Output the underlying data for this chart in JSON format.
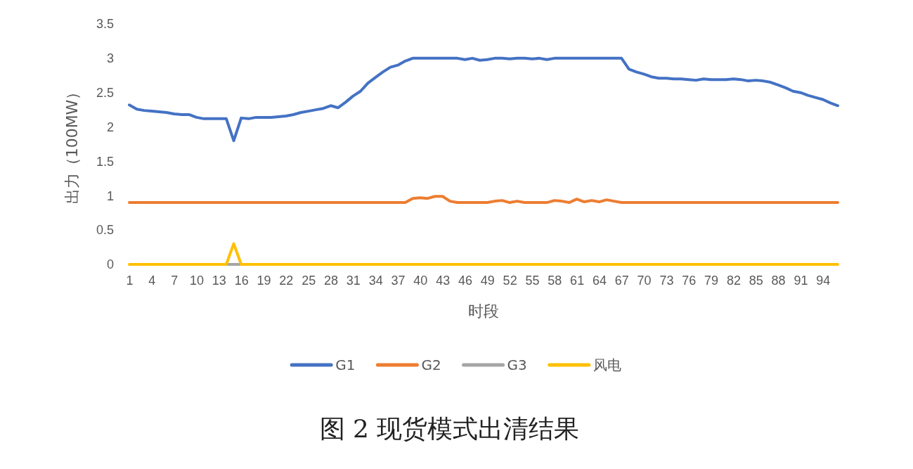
{
  "chart_data": {
    "type": "line",
    "title": "图 2  现货模式出清结果",
    "xlabel": "时段",
    "ylabel": "出力（100MW）",
    "categories": [
      "1",
      null,
      null,
      "4",
      null,
      null,
      "7",
      null,
      null,
      "10",
      null,
      null,
      "13",
      null,
      null,
      "16",
      null,
      null,
      "19",
      null,
      null,
      "22",
      null,
      null,
      "25",
      null,
      null,
      "28",
      null,
      null,
      "31",
      null,
      null,
      "34",
      null,
      null,
      "37",
      null,
      null,
      "40",
      null,
      null,
      "43",
      null,
      null,
      "46",
      null,
      null,
      "49",
      null,
      null,
      "52",
      null,
      null,
      "55",
      null,
      null,
      "58",
      null,
      null,
      "61",
      null,
      null,
      "64",
      null,
      null,
      "67",
      null,
      null,
      "70",
      null,
      null,
      "73",
      null,
      null,
      "76",
      null,
      null,
      "79",
      null,
      null,
      "82",
      null,
      null,
      "85",
      null,
      null,
      "88",
      null,
      null,
      "91",
      null,
      null,
      "94",
      null,
      null
    ],
    "ylim": [
      0,
      3.5
    ],
    "yticks": [
      0,
      0.5,
      1,
      1.5,
      2,
      2.5,
      3,
      3.5
    ],
    "grid": false,
    "legend": "bottom",
    "marker": "none",
    "line_style": "solid",
    "series": [
      {
        "name": "G1",
        "color": "#4472c4",
        "values": [
          2.32,
          2.26,
          2.24,
          2.23,
          2.22,
          2.21,
          2.19,
          2.18,
          2.18,
          2.14,
          2.12,
          2.12,
          2.12,
          2.12,
          1.8,
          2.13,
          2.12,
          2.14,
          2.14,
          2.14,
          2.15,
          2.16,
          2.18,
          2.21,
          2.23,
          2.25,
          2.27,
          2.31,
          2.28,
          2.36,
          2.45,
          2.52,
          2.64,
          2.72,
          2.8,
          2.87,
          2.9,
          2.96,
          3,
          3,
          3,
          3,
          3,
          3,
          3,
          2.98,
          3,
          2.97,
          2.98,
          3,
          3,
          2.99,
          3,
          3,
          2.99,
          3,
          2.98,
          3,
          3,
          3,
          3,
          3,
          3,
          3,
          3,
          3,
          3,
          2.84,
          2.8,
          2.77,
          2.73,
          2.71,
          2.71,
          2.7,
          2.7,
          2.69,
          2.68,
          2.7,
          2.69,
          2.69,
          2.69,
          2.7,
          2.69,
          2.67,
          2.68,
          2.67,
          2.65,
          2.61,
          2.57,
          2.52,
          2.5,
          2.46,
          2.43,
          2.4,
          2.35,
          2.31
        ]
      },
      {
        "name": "G2",
        "color": "#ed7d31",
        "values": [
          0.9,
          0.9,
          0.9,
          0.9,
          0.9,
          0.9,
          0.9,
          0.9,
          0.9,
          0.9,
          0.9,
          0.9,
          0.9,
          0.9,
          0.9,
          0.9,
          0.9,
          0.9,
          0.9,
          0.9,
          0.9,
          0.9,
          0.9,
          0.9,
          0.9,
          0.9,
          0.9,
          0.9,
          0.9,
          0.9,
          0.9,
          0.9,
          0.9,
          0.9,
          0.9,
          0.9,
          0.9,
          0.9,
          0.96,
          0.97,
          0.96,
          0.99,
          0.99,
          0.92,
          0.9,
          0.9,
          0.9,
          0.9,
          0.9,
          0.92,
          0.93,
          0.9,
          0.92,
          0.9,
          0.9,
          0.9,
          0.9,
          0.93,
          0.92,
          0.9,
          0.95,
          0.91,
          0.93,
          0.91,
          0.94,
          0.92,
          0.9,
          0.9,
          0.9,
          0.9,
          0.9,
          0.9,
          0.9,
          0.9,
          0.9,
          0.9,
          0.9,
          0.9,
          0.9,
          0.9,
          0.9,
          0.9,
          0.9,
          0.9,
          0.9,
          0.9,
          0.9,
          0.9,
          0.9,
          0.9,
          0.9,
          0.9,
          0.9,
          0.9,
          0.9,
          0.9
        ]
      },
      {
        "name": "G3",
        "color": "#a5a5a5",
        "values": [
          null,
          null,
          null,
          null,
          null,
          null,
          null,
          null,
          null,
          null,
          null,
          null,
          null,
          0,
          0,
          0,
          null,
          null,
          null,
          null,
          null,
          null,
          null,
          null,
          null,
          null,
          null,
          null,
          null,
          null,
          null,
          null,
          null,
          null,
          null,
          null,
          null,
          null,
          null,
          null,
          null,
          null,
          null,
          null,
          null,
          null,
          null,
          null,
          null,
          null,
          null,
          null,
          null,
          null,
          null,
          null,
          null,
          null,
          null,
          null,
          null,
          null,
          null,
          null,
          null,
          null,
          null,
          null,
          null,
          null,
          null,
          null,
          null,
          null,
          null,
          null,
          null,
          null,
          null,
          null,
          null,
          null,
          null,
          null,
          null,
          null,
          null,
          null,
          null,
          null,
          null,
          null,
          null,
          null,
          null,
          null
        ]
      },
      {
        "name": "风电",
        "color": "#ffc000",
        "values": [
          0,
          0,
          0,
          0,
          0,
          0,
          0,
          0,
          0,
          0,
          0,
          0,
          0,
          0,
          0.3,
          0,
          0,
          0,
          0,
          0,
          0,
          0,
          0,
          0,
          0,
          0,
          0,
          0,
          0,
          0,
          0,
          0,
          0,
          0,
          0,
          0,
          0,
          0,
          0,
          0,
          0,
          0,
          0,
          0,
          0,
          0,
          0,
          0,
          0,
          0,
          0,
          0,
          0,
          0,
          0,
          0,
          0,
          0,
          0,
          0,
          0,
          0,
          0,
          0,
          0,
          0,
          0,
          0,
          0,
          0,
          0,
          0,
          0,
          0,
          0,
          0,
          0,
          0,
          0,
          0,
          0,
          0,
          0,
          0,
          0,
          0,
          0,
          0,
          0,
          0,
          0,
          0,
          0,
          0,
          0,
          0
        ]
      }
    ]
  }
}
